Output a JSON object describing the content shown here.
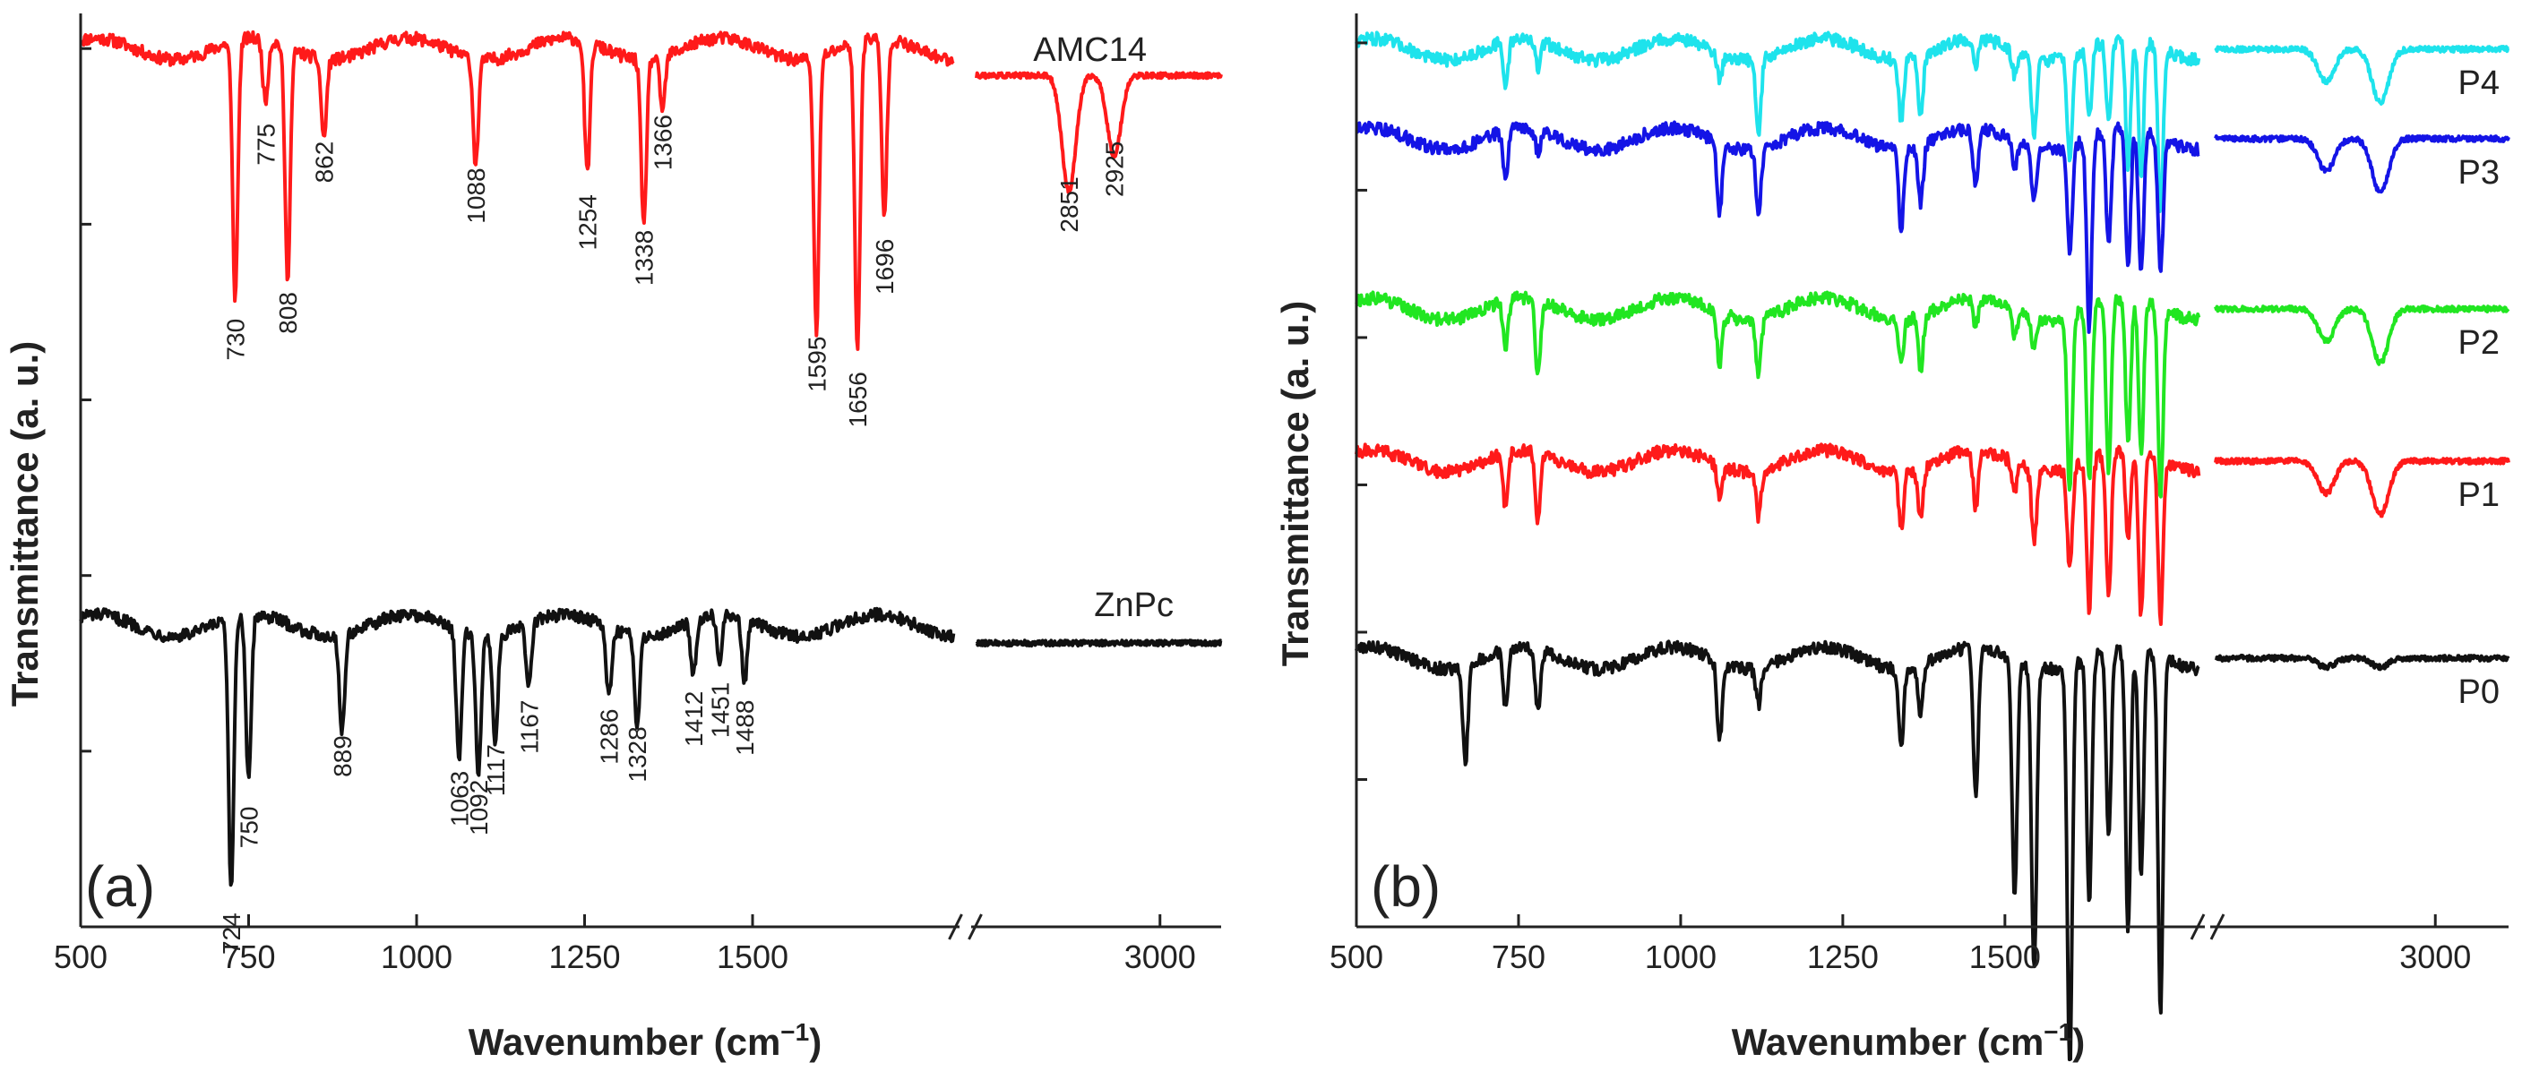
{
  "chart_data": [
    {
      "panel": "(a)",
      "type": "line",
      "xlabel": "Wavenumber (cm",
      "xlabel_sup": "−1",
      "xlabel_end": ")",
      "ylabel": "Transmittance (a. u.)",
      "x_segments": [
        {
          "range": [
            500,
            1800
          ],
          "ticks": [
            500,
            750,
            1000,
            1250,
            1500
          ]
        },
        {
          "range": [
            2700,
            3100
          ],
          "ticks": [
            3000
          ]
        }
      ],
      "y_tick_count": 5,
      "ylim": [
        -0.05,
        5.1
      ],
      "series": [
        {
          "name": "AMC14",
          "color": "#ff1a1a",
          "offset": 3.1,
          "baseline": 1.8,
          "second_baseline": 1.65,
          "peaks": [
            {
              "x": 730,
              "depth": 1.45,
              "label": "730"
            },
            {
              "x": 775,
              "depth": 0.35,
              "label": "775"
            },
            {
              "x": 808,
              "depth": 1.3,
              "label": "808"
            },
            {
              "x": 862,
              "depth": 0.45,
              "label": "862"
            },
            {
              "x": 1088,
              "depth": 0.6,
              "label": "1088"
            },
            {
              "x": 1254,
              "depth": 0.75,
              "label": "1254"
            },
            {
              "x": 1338,
              "depth": 0.95,
              "label": "1338"
            },
            {
              "x": 1366,
              "depth": 0.3,
              "label": "1366"
            },
            {
              "x": 1595,
              "depth": 1.55,
              "label": "1595"
            },
            {
              "x": 1656,
              "depth": 1.75,
              "label": "1656"
            },
            {
              "x": 1696,
              "depth": 1.0,
              "label": "1696"
            },
            {
              "x": 2851,
              "depth": 0.65,
              "label": "2851"
            },
            {
              "x": 2925,
              "depth": 0.45,
              "label": "2925"
            }
          ]
        },
        {
          "name": "ZnPc",
          "color": "#111111",
          "offset": 0.0,
          "baseline": 1.65,
          "second_baseline": 1.55,
          "peaks": [
            {
              "x": 724,
              "depth": 1.55,
              "label": "724"
            },
            {
              "x": 750,
              "depth": 0.95,
              "label": "750"
            },
            {
              "x": 889,
              "depth": 0.55,
              "label": "889"
            },
            {
              "x": 1063,
              "depth": 0.75,
              "label": "1063"
            },
            {
              "x": 1092,
              "depth": 0.8,
              "label": "1092"
            },
            {
              "x": 1117,
              "depth": 0.6,
              "label": "1117"
            },
            {
              "x": 1167,
              "depth": 0.35,
              "label": "1167"
            },
            {
              "x": 1286,
              "depth": 0.4,
              "label": "1286"
            },
            {
              "x": 1328,
              "depth": 0.5,
              "label": "1328"
            },
            {
              "x": 1412,
              "depth": 0.3,
              "label": "1412"
            },
            {
              "x": 1451,
              "depth": 0.25,
              "label": "1451"
            },
            {
              "x": 1488,
              "depth": 0.35,
              "label": "1488"
            }
          ]
        }
      ]
    },
    {
      "panel": "(b)",
      "type": "line",
      "xlabel": "Wavenumber (cm",
      "xlabel_sup": "−1",
      "xlabel_end": ")",
      "ylabel": "Transmittance (a. u.)",
      "x_segments": [
        {
          "range": [
            500,
            1800
          ],
          "ticks": [
            500,
            750,
            1000,
            1250,
            1500
          ]
        },
        {
          "range": [
            2700,
            3100
          ],
          "ticks": [
            3000
          ]
        }
      ],
      "y_tick_count": 6,
      "ylim": [
        0,
        5.1
      ],
      "series": [
        {
          "name": "P4",
          "color": "#1ee3ec",
          "offset": 4.9
        },
        {
          "name": "P3",
          "color": "#1414e6",
          "offset": 4.4
        },
        {
          "name": "P2",
          "color": "#21e621",
          "offset": 3.45
        },
        {
          "name": "P1",
          "color": "#ff1a1a",
          "offset": 2.6
        },
        {
          "name": "P0",
          "color": "#111111",
          "offset": 1.5
        }
      ]
    }
  ]
}
